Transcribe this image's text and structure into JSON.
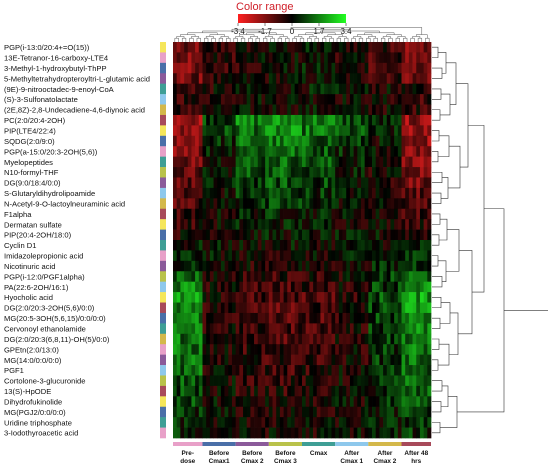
{
  "chart_data": {
    "type": "heatmap",
    "colorbar": {
      "title": "Color range",
      "ticks": [
        "-3.4",
        "-1.7",
        "0",
        "1.7",
        "3.4"
      ],
      "min": -3.4,
      "max": 3.4,
      "low_color": "#ff2020",
      "mid_color": "#000000",
      "high_color": "#22ff22"
    },
    "row_labels": [
      "PGP(i-13:0/20:4+=O(15))",
      "13E-Tetranor-16-carboxy-LTE4",
      "3-Methyl-1-hydroxybutyl-ThPP",
      "5-Methyltetrahydropteroyltri-L-glutamic acid",
      "(9E)-9-nitrooctadec-9-enoyl-CoA",
      "(S)-3-Sulfonatolactate",
      "(2E,8Z)-2,8-Undecadiene-4,6-diynoic acid",
      "PC(2:0/20:4-2OH)",
      "PIP(LTE4/22:4)",
      "SQDG(2:0/9:0)",
      "PGP(a-15:0/20:3-2OH(5,6))",
      "Myelopeptides",
      "N10-formyl-THF",
      "DG(9:0/18:4/0:0)",
      "S-Glutaryldihydrolipoamide",
      "N-Acetyl-9-O-lactoylneuraminic acid",
      "F1alpha",
      "Dermatan sulfate",
      "PIP(20:4-2OH/18:0)",
      "Cyclin D1",
      "Imidazolepropionic acid",
      "Nicotinuric acid",
      "PGP(i-12:0/PGF1alpha)",
      "PA(22:6-2OH/16:1)",
      "Hyocholic acid",
      "DG(2:0/20:3-2OH(5,6)/0:0)",
      "MG(20:5-3OH(5,6,15)/0:0/0:0)",
      "Cervonoyl ethanolamide",
      "DG(2:0/20:3(6,8,11)-OH(5)/0:0)",
      "GPEtn(2:0/13:0)",
      "MG(14:0/0:0/0:0)",
      "PGF1",
      "Cortolone-3-glucuronide",
      "13(S)-HpODE",
      "Dihydrofukinolide",
      "MG(PGJ2/0:0/0:0)",
      "Uridine triphosphate",
      "3-Iodothyroacetic acid"
    ],
    "column_groups": [
      {
        "label": [
          "Pre-",
          "dose"
        ],
        "color": "#e8a0c8",
        "cols": 8
      },
      {
        "label": [
          "Before",
          "Cmax1"
        ],
        "color": "#4a6fa8",
        "cols": 9
      },
      {
        "label": [
          "Before",
          "Cmax 2"
        ],
        "color": "#8b5a9a",
        "cols": 9
      },
      {
        "label": [
          "Before",
          "Cmax 3"
        ],
        "color": "#b9c24a",
        "cols": 9
      },
      {
        "label": [
          "Cmax"
        ],
        "color": "#3e9e95",
        "cols": 9
      },
      {
        "label": [
          "After",
          "Cmax 1"
        ],
        "color": "#8ec8ec",
        "cols": 9
      },
      {
        "label": [
          "After",
          "Cmax 2"
        ],
        "color": "#d4b84a",
        "cols": 9
      },
      {
        "label": [
          "After 48",
          "hrs"
        ],
        "color": "#a84a5a",
        "cols": 8
      }
    ],
    "row_mean_pattern": [
      [
        -1.6,
        -0.6,
        -0.3,
        -0.1,
        0.1,
        -0.2,
        -0.6,
        -1.4
      ],
      [
        -1.5,
        -0.5,
        -0.2,
        -0.1,
        0.0,
        -0.3,
        -0.7,
        -1.5
      ],
      [
        -1.7,
        -0.7,
        -0.3,
        0.0,
        0.1,
        -0.2,
        -0.8,
        -1.6
      ],
      [
        -1.4,
        -0.6,
        -0.2,
        -0.1,
        0.0,
        -0.3,
        -0.6,
        -1.3
      ],
      [
        -0.6,
        -0.3,
        -0.1,
        0.0,
        0.1,
        0.0,
        -0.2,
        -0.5
      ],
      [
        -0.5,
        -0.2,
        0.0,
        0.1,
        0.1,
        -0.1,
        -0.3,
        -0.6
      ],
      [
        -0.7,
        -0.3,
        -0.1,
        0.0,
        0.0,
        -0.1,
        -0.2,
        -0.5
      ],
      [
        -1.8,
        0.9,
        1.6,
        1.8,
        1.6,
        1.0,
        0.3,
        -1.9
      ],
      [
        -1.9,
        0.8,
        1.5,
        1.7,
        1.5,
        0.9,
        0.2,
        -2.0
      ],
      [
        -1.6,
        0.5,
        1.3,
        1.5,
        1.2,
        0.6,
        0.0,
        -1.8
      ],
      [
        -1.5,
        0.4,
        1.2,
        1.4,
        1.1,
        0.5,
        0.0,
        -1.6
      ],
      [
        -1.4,
        0.3,
        1.1,
        1.3,
        1.0,
        0.4,
        -0.2,
        -1.7
      ],
      [
        -1.3,
        0.2,
        1.0,
        1.2,
        0.9,
        0.3,
        -0.3,
        -1.5
      ],
      [
        -1.2,
        0.1,
        0.8,
        1.0,
        0.8,
        0.2,
        -0.3,
        -1.4
      ],
      [
        -1.0,
        0.0,
        0.6,
        0.8,
        0.6,
        0.1,
        -0.2,
        -1.1
      ],
      [
        -0.9,
        0.0,
        0.5,
        0.7,
        0.5,
        0.1,
        -0.2,
        -1.0
      ],
      [
        -0.7,
        -0.1,
        0.3,
        0.4,
        0.3,
        0.0,
        -0.2,
        -0.8
      ],
      [
        -0.5,
        -0.1,
        0.2,
        0.3,
        0.2,
        0.0,
        -0.1,
        -0.5
      ],
      [
        -0.3,
        0.0,
        0.1,
        0.1,
        0.1,
        0.0,
        0.0,
        -0.2
      ],
      [
        0.1,
        0.0,
        -0.1,
        0.0,
        0.0,
        0.0,
        0.1,
        0.2
      ],
      [
        0.4,
        0.0,
        -0.2,
        -0.2,
        -0.2,
        0.0,
        0.2,
        0.5
      ],
      [
        0.7,
        -0.1,
        -0.3,
        -0.3,
        -0.3,
        -0.1,
        0.3,
        0.8
      ],
      [
        1.2,
        -0.2,
        -0.5,
        -0.6,
        -0.5,
        -0.2,
        0.6,
        1.3
      ],
      [
        1.6,
        -0.3,
        -0.7,
        -0.8,
        -0.7,
        -0.3,
        0.8,
        1.8
      ],
      [
        1.9,
        -0.4,
        -0.9,
        -1.0,
        -0.9,
        -0.4,
        1.0,
        2.0
      ],
      [
        1.8,
        -0.4,
        -0.8,
        -1.0,
        -0.8,
        -0.4,
        0.9,
        1.9
      ],
      [
        1.7,
        -0.5,
        -0.9,
        -1.1,
        -0.9,
        -0.5,
        0.9,
        1.8
      ],
      [
        1.6,
        -0.4,
        -0.8,
        -0.9,
        -0.8,
        -0.4,
        0.8,
        1.7
      ],
      [
        1.5,
        -0.3,
        -0.7,
        -0.9,
        -0.7,
        -0.3,
        0.8,
        1.6
      ],
      [
        1.4,
        -0.3,
        -0.6,
        -0.8,
        -0.6,
        -0.3,
        0.7,
        1.5
      ],
      [
        1.3,
        -0.3,
        -0.6,
        -0.7,
        -0.6,
        -0.3,
        0.6,
        1.4
      ],
      [
        1.2,
        -0.2,
        -0.5,
        -0.7,
        -0.5,
        -0.2,
        0.6,
        1.3
      ],
      [
        1.1,
        -0.2,
        -0.5,
        -0.6,
        -0.5,
        -0.2,
        0.5,
        1.2
      ],
      [
        0.9,
        -0.2,
        -0.4,
        -0.5,
        -0.4,
        -0.2,
        0.4,
        1.0
      ],
      [
        0.8,
        -0.1,
        -0.3,
        -0.4,
        -0.3,
        -0.1,
        0.4,
        0.9
      ],
      [
        0.6,
        -0.1,
        -0.3,
        -0.4,
        -0.3,
        -0.1,
        0.3,
        0.7
      ],
      [
        0.5,
        -0.1,
        -0.2,
        -0.3,
        -0.2,
        -0.1,
        0.2,
        0.6
      ],
      [
        0.4,
        0.0,
        -0.2,
        -0.2,
        -0.2,
        0.0,
        0.2,
        0.5
      ]
    ],
    "row_sidebar_colors": [
      "#f5e65a",
      "#e8a0c8",
      "#4a6fa8",
      "#8b5a9a",
      "#3e9e95",
      "#8ec8ec",
      "#d4b84a",
      "#a84a5a",
      "#f5e65a",
      "#4a6fa8",
      "#e8a0c8",
      "#3e9e95",
      "#b9c24a",
      "#8b5a9a",
      "#8ec8ec",
      "#d4b84a",
      "#a84a5a",
      "#f5e65a",
      "#4a6fa8",
      "#3e9e95",
      "#e8a0c8",
      "#8b5a9a",
      "#b9c24a",
      "#8ec8ec",
      "#f5e65a",
      "#a84a5a",
      "#4a6fa8",
      "#3e9e95",
      "#d4b84a",
      "#e8a0c8",
      "#8b5a9a",
      "#8ec8ec",
      "#b9c24a",
      "#a84a5a",
      "#f5e65a",
      "#4a6fa8",
      "#3e9e95",
      "#e8a0c8"
    ],
    "dendrogram": "right"
  }
}
